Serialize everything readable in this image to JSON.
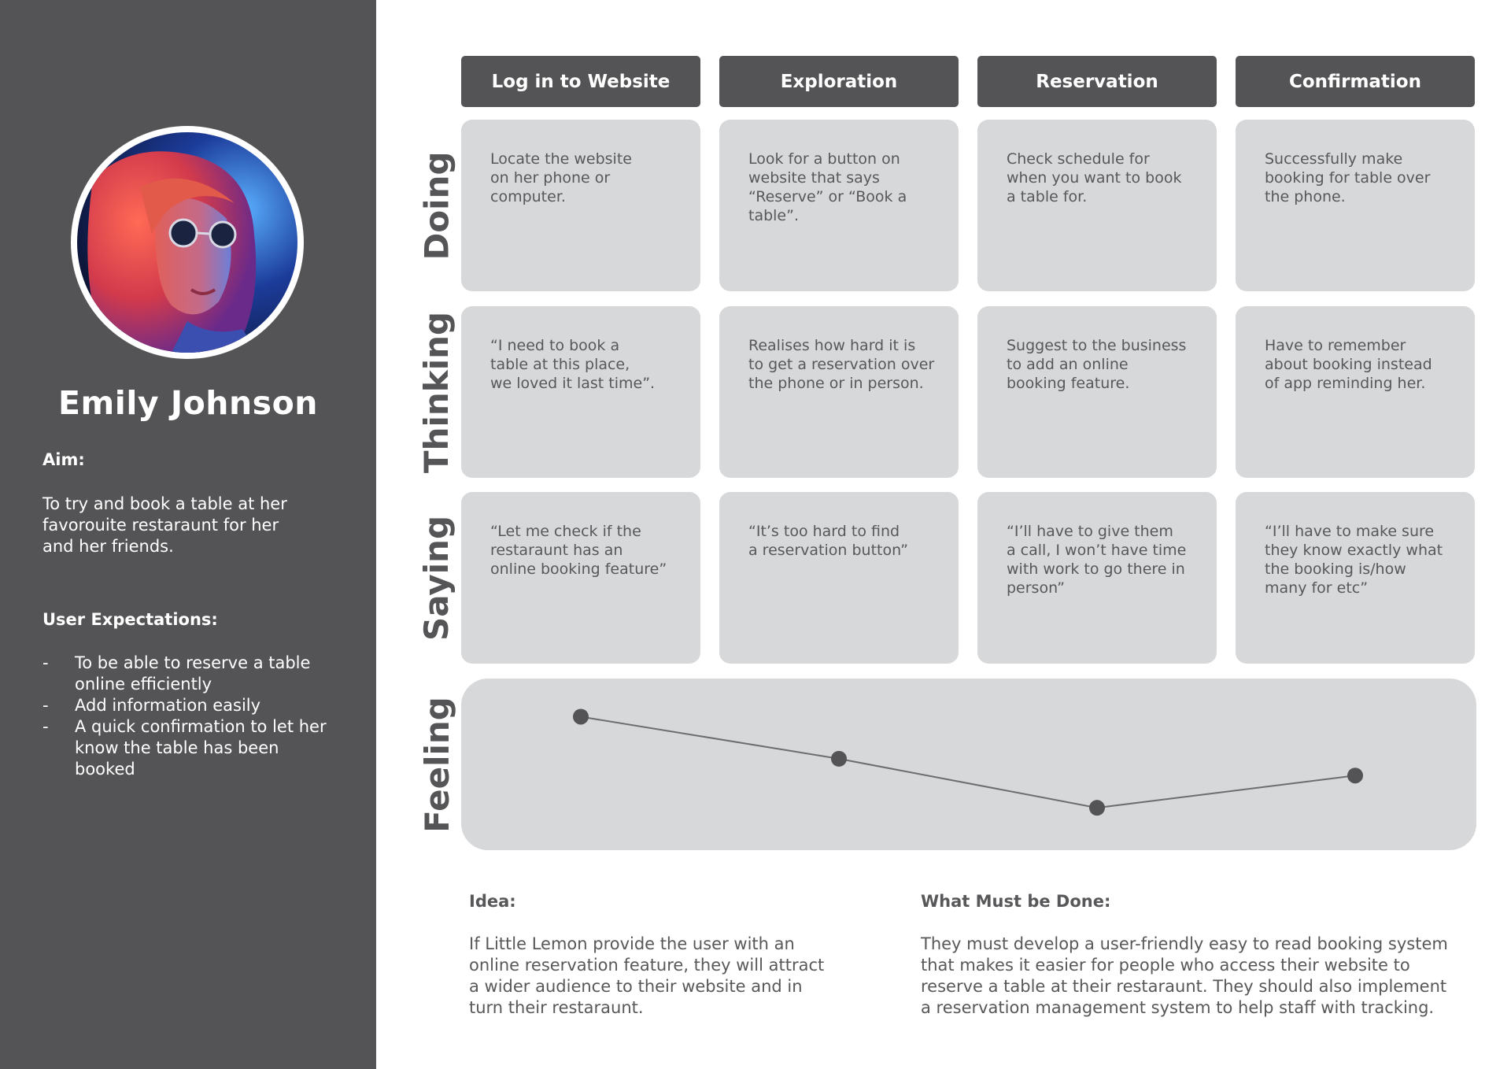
{
  "persona": {
    "name": "Emily Johnson",
    "aim_label": "Aim:",
    "aim_text": "To try and book a table at her favorouite restaraunt for her and her friends.",
    "expectations_label": "User Expectations:",
    "expectations": [
      "To be able to reserve a table online efficiently",
      "Add information easily",
      "A quick confirmation to let her know the table has been booked"
    ],
    "bullet": "-"
  },
  "stages": [
    {
      "label": "Log in to Website"
    },
    {
      "label": "Exploration"
    },
    {
      "label": "Reservation"
    },
    {
      "label": "Confirmation"
    }
  ],
  "rows": [
    {
      "label": "Doing",
      "cells": [
        "Locate the website\non her phone or\ncomputer.",
        "Look for a button on\nwebsite that says\n“Reserve” or “Book a\ntable”.",
        "Check schedule for\nwhen you want to book\na table for.",
        "Successfully make\nbooking for table over\nthe phone."
      ]
    },
    {
      "label": "Thinking",
      "cells": [
        "“I need to book a\ntable at this place,\nwe loved it last time”.",
        "Realises how hard it is\nto get a reservation over\nthe phone or in person.",
        "Suggest to the business\nto add an online\nbooking feature.",
        "Have to remember\nabout booking instead\nof app reminding her."
      ]
    },
    {
      "label": "Saying",
      "cells": [
        "“Let me check if the\nrestaraunt has an\nonline booking feature”",
        "“It’s too hard to find\na reservation button”",
        "“I’ll have to give them\na call, I won’t have time\nwith work to go there in\nperson”",
        "“I’ll have to make sure\nthey know exactly what\nthe booking is/how\nmany for etc”"
      ]
    }
  ],
  "feeling": {
    "label": "Feeling",
    "line_color": "#6d6d6f",
    "point_color": "#545456",
    "levels": [
      0.84,
      0.54,
      0.19,
      0.42
    ]
  },
  "idea": {
    "label": "Idea:",
    "text": "If Little Lemon provide the user with an\nonline reservation feature, they will attract\na wider audience to their website and in\nturn their restaraunt."
  },
  "must_do": {
    "label": "What Must be Done:",
    "text": "They must develop a user-friendly easy to read booking system\nthat makes it easier for people who access their website to\nreserve a table at their restaraunt. They should also implement\na reservation management system to help staff with tracking."
  },
  "colors": {
    "sidebar": "#545456",
    "card": "#d7d8da",
    "header": "#545456"
  }
}
